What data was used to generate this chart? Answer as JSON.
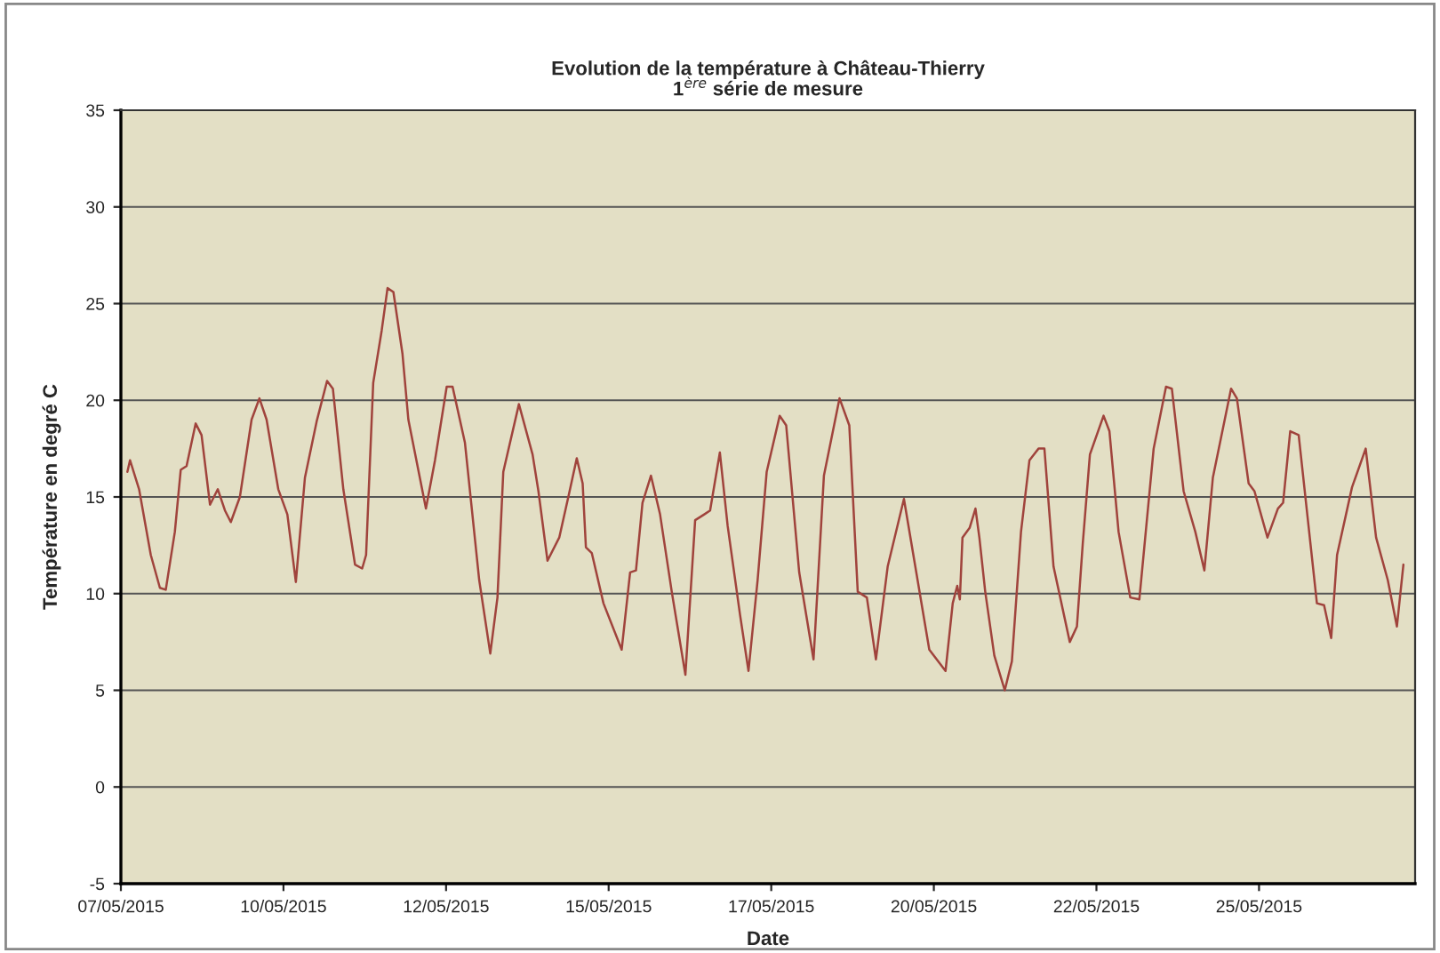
{
  "chart_data": {
    "type": "line",
    "title": "Evolution de la température à Château-Thierry\n1$^{ère}$ série de mesure",
    "xlabel": "Date",
    "ylabel": "Température en degré C",
    "x": [
      "2015-05-07T02:24",
      "2015-05-07T03:22",
      "2015-05-07T06:43",
      "2015-05-07T11:02",
      "2015-05-07T14:24",
      "2015-05-07T16:34",
      "2015-05-07T19:55",
      "2015-05-07T22:05",
      "2015-05-08T00:14",
      "2015-05-08T03:36",
      "2015-05-08T05:46",
      "2015-05-08T08:53",
      "2015-05-08T11:46",
      "2015-05-08T14:24",
      "2015-05-08T16:34",
      "2015-05-08T19:55",
      "2015-05-09T00:14",
      "2015-05-09T03:07",
      "2015-05-09T05:46",
      "2015-05-09T10:05",
      "2015-05-09T13:26",
      "2015-05-09T16:34",
      "2015-05-09T19:55",
      "2015-05-10T00:14",
      "2015-05-10T04:05",
      "2015-05-10T06:14",
      "2015-05-10T10:05",
      "2015-05-10T14:24",
      "2015-05-10T17:02",
      "2015-05-10T18:29",
      "2015-05-10T21:07",
      "2015-05-11T00:14",
      "2015-05-11T02:24",
      "2015-05-11T04:34",
      "2015-05-11T07:55",
      "2015-05-11T10:05",
      "2015-05-11T16:34",
      "2015-05-11T19:55",
      "2015-05-12T00:14",
      "2015-05-12T02:24",
      "2015-05-12T06:58",
      "2015-05-12T12:14",
      "2015-05-12T16:19",
      "2015-05-12T18:58",
      "2015-05-12T21:07",
      "2015-05-13T02:53",
      "2015-05-13T07:55",
      "2015-05-13T10:05",
      "2015-05-13T13:26",
      "2015-05-13T17:46",
      "2015-05-13T21:07",
      "2015-05-14T00:14",
      "2015-05-14T02:24",
      "2015-05-14T03:36",
      "2015-05-14T05:46",
      "2015-05-14T10:05",
      "2015-05-14T16:48",
      "2015-05-14T19:55",
      "2015-05-14T22:05",
      "2015-05-15T00:29",
      "2015-05-15T03:36",
      "2015-05-15T06:58",
      "2015-05-15T11:17",
      "2015-05-15T16:19",
      "2015-05-15T19:55",
      "2015-05-15T23:17",
      "2015-05-16T01:26",
      "2015-05-16T05:02",
      "2015-05-16T07:55",
      "2015-05-16T12:29",
      "2015-05-16T15:36",
      "2015-05-16T18:58",
      "2015-05-16T22:19",
      "2015-05-17T03:07",
      "2015-05-17T05:31",
      "2015-05-17T10:19",
      "2015-05-17T15:36",
      "2015-05-17T19:26",
      "2015-05-18T01:12",
      "2015-05-18T04:48",
      "2015-05-18T07:55",
      "2015-05-18T11:17",
      "2015-05-18T14:38",
      "2015-05-18T18:58",
      "2015-05-19T00:58",
      "2015-05-19T04:48",
      "2015-05-19T10:19",
      "2015-05-19T16:19",
      "2015-05-19T18:58",
      "2015-05-19T20:38",
      "2015-05-19T21:36",
      "2015-05-19T22:34",
      "2015-05-20T01:12",
      "2015-05-20T03:22",
      "2015-05-20T04:48",
      "2015-05-20T06:58",
      "2015-05-20T10:19",
      "2015-05-20T14:10",
      "2015-05-20T16:48",
      "2015-05-20T20:10",
      "2015-05-20T23:17",
      "2015-05-21T02:38",
      "2015-05-21T04:48",
      "2015-05-21T08:10",
      "2015-05-21T14:10",
      "2015-05-21T16:48",
      "2015-05-21T18:58",
      "2015-05-21T21:36",
      "2015-05-22T02:38",
      "2015-05-22T04:48",
      "2015-05-22T08:10",
      "2015-05-22T12:29",
      "2015-05-22T15:50",
      "2015-05-22T21:07",
      "2015-05-23T01:41",
      "2015-05-23T03:50",
      "2015-05-23T08:10",
      "2015-05-23T12:29",
      "2015-05-23T15:50",
      "2015-05-23T18:58",
      "2015-05-24T01:41",
      "2015-05-24T03:50",
      "2015-05-24T08:10",
      "2015-05-24T10:19",
      "2015-05-24T15:07",
      "2015-05-24T18:58",
      "2015-05-24T20:53",
      "2015-05-24T23:31",
      "2015-05-25T02:38",
      "2015-05-25T09:22",
      "2015-05-25T12:00",
      "2015-05-25T14:38",
      "2015-05-25T16:48",
      "2015-05-25T22:19",
      "2015-05-26T03:22",
      "2015-05-26T07:12",
      "2015-05-26T11:31",
      "2015-05-26T14:53",
      "2015-05-26T17:17"
    ],
    "series": [
      {
        "color": "#a0433c",
        "values": [
          16.3,
          16.9,
          15.4,
          12.0,
          10.3,
          10.2,
          13.2,
          16.4,
          16.6,
          18.8,
          18.2,
          14.6,
          15.4,
          14.3,
          13.7,
          15.0,
          19.0,
          20.1,
          19.0,
          15.4,
          14.1,
          10.6,
          16.0,
          18.9,
          21.0,
          20.6,
          15.4,
          11.5,
          11.3,
          12.0,
          20.9,
          23.6,
          25.8,
          25.6,
          22.4,
          19.0,
          14.4,
          16.9,
          20.7,
          20.7,
          17.8,
          10.7,
          6.9,
          9.8,
          16.3,
          19.8,
          17.2,
          15.3,
          11.7,
          12.9,
          15.0,
          17.0,
          15.7,
          12.4,
          12.1,
          9.5,
          7.1,
          11.1,
          11.2,
          14.7,
          16.1,
          14.1,
          10.1,
          5.8,
          13.8,
          14.1,
          14.3,
          17.3,
          13.5,
          8.9,
          6.0,
          10.7,
          16.3,
          19.2,
          18.7,
          11.1,
          6.6,
          16.1,
          20.1,
          18.7,
          10.1,
          9.8,
          6.6,
          11.4,
          14.9,
          11.7,
          7.1,
          6.0,
          9.5,
          10.4,
          9.7,
          12.9,
          13.4,
          14.4,
          12.9,
          10.1,
          6.8,
          5.0,
          6.5,
          13.2,
          16.9,
          17.5,
          17.5,
          11.4,
          7.5,
          8.3,
          12.6,
          17.2,
          19.2,
          18.4,
          13.2,
          9.8,
          9.7,
          17.5,
          20.7,
          20.6,
          15.3,
          13.2,
          11.2,
          16.0,
          20.6,
          20.1,
          15.7,
          15.3,
          12.9,
          14.4,
          14.7,
          18.4,
          18.2,
          9.5,
          9.4,
          7.7,
          12.0,
          15.5,
          17.5,
          12.9,
          10.7,
          8.3,
          11.5
        ]
      }
    ],
    "xlim": [
      "2015-05-07T00:00",
      "2015-05-26T21:36"
    ],
    "xticks": [
      {
        "value": "2015-05-07T00:00",
        "label": "07/05/2015"
      },
      {
        "value": "2015-05-09T12:00",
        "label": "10/05/2015"
      },
      {
        "value": "2015-05-12T00:00",
        "label": "12/05/2015"
      },
      {
        "value": "2015-05-14T12:00",
        "label": "15/05/2015"
      },
      {
        "value": "2015-05-17T00:00",
        "label": "17/05/2015"
      },
      {
        "value": "2015-05-19T12:00",
        "label": "20/05/2015"
      },
      {
        "value": "2015-05-22T00:00",
        "label": "22/05/2015"
      },
      {
        "value": "2015-05-24T12:00",
        "label": "25/05/2015"
      }
    ],
    "ylim": [
      -5,
      35
    ],
    "yticks": [
      -5,
      0,
      5,
      10,
      15,
      20,
      25,
      30,
      35
    ],
    "grid": "y",
    "marker": "none",
    "line_style": "solid"
  }
}
